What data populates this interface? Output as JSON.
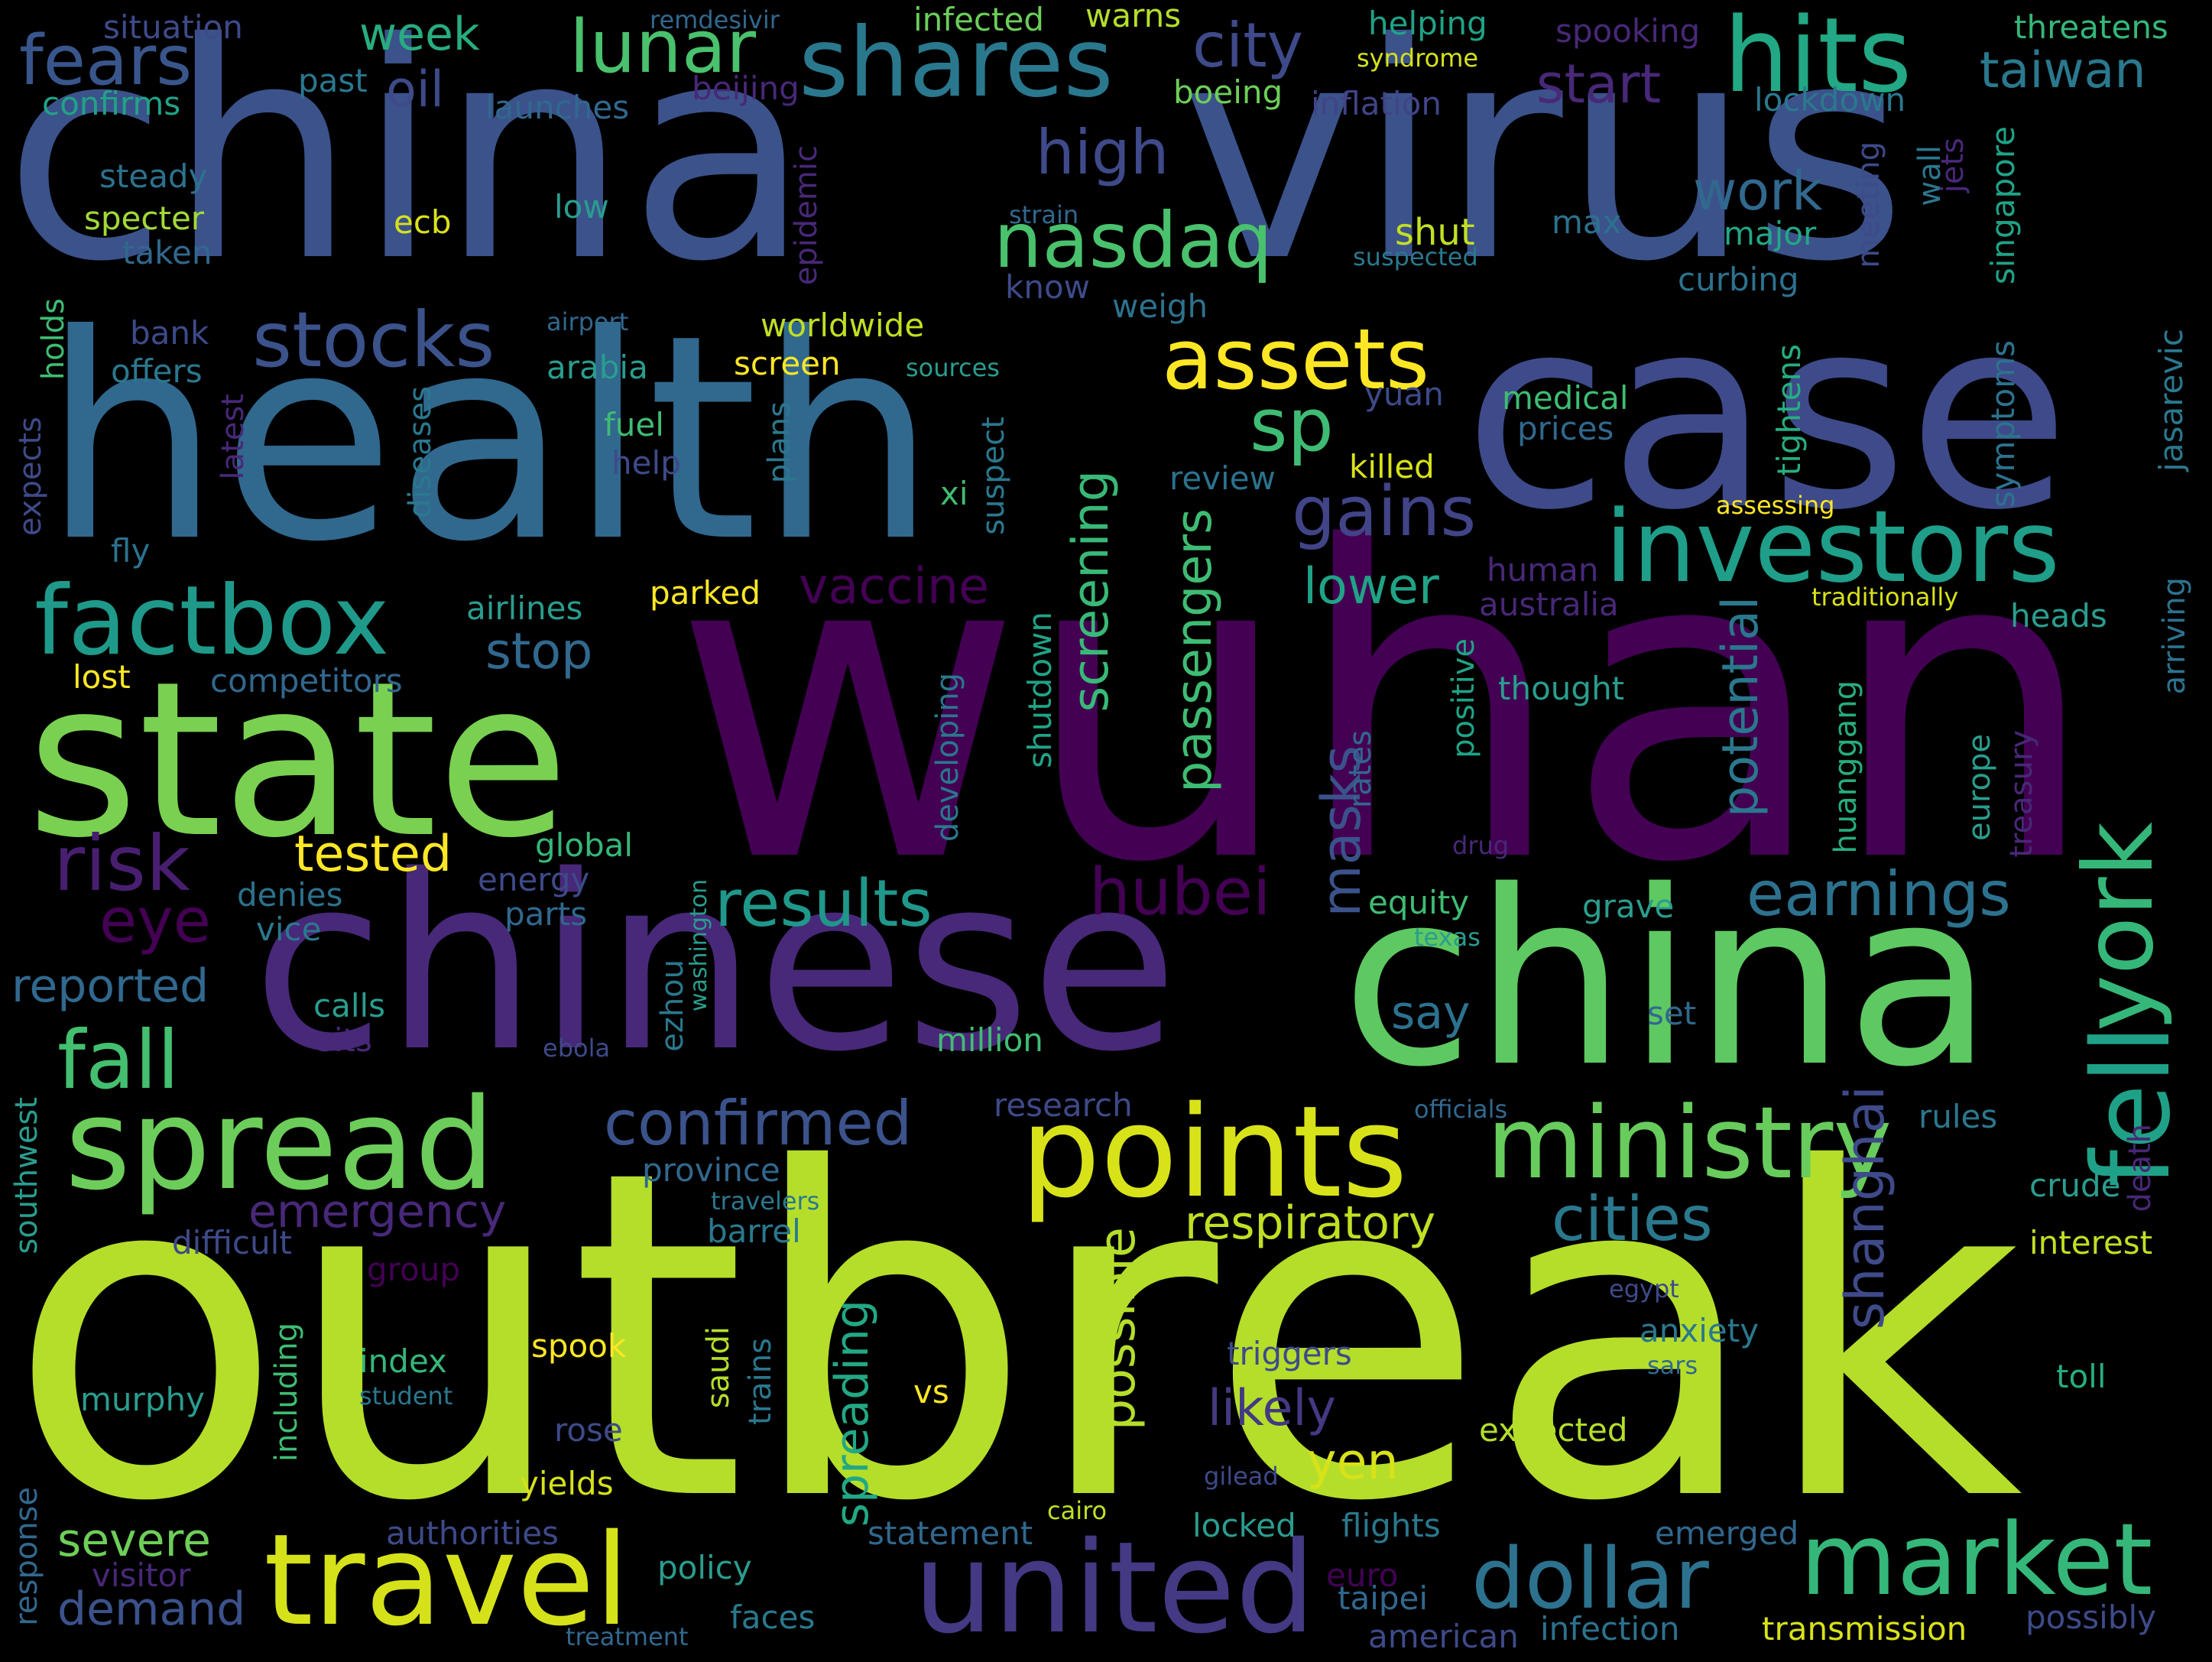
{
  "words": [
    {
      "text": "outbreak",
      "color": "#b5de2b"
    },
    {
      "text": "wuhan",
      "color": "#440154"
    },
    {
      "text": "china",
      "color": "#3b528b"
    },
    {
      "text": "virus",
      "color": "#3b528b"
    },
    {
      "text": "health",
      "color": "#31688e"
    },
    {
      "text": "case",
      "color": "#3e4a89"
    },
    {
      "text": "chinese",
      "color": "#482878"
    },
    {
      "text": "china",
      "color": "#5ec962"
    },
    {
      "text": "state",
      "color": "#7ad151"
    },
    {
      "text": "points",
      "color": "#d8e219"
    },
    {
      "text": "spread",
      "color": "#6ccd5a"
    },
    {
      "text": "travel",
      "color": "#d5e21a"
    },
    {
      "text": "united",
      "color": "#443983"
    },
    {
      "text": "shares",
      "color": "#2a788e"
    },
    {
      "text": "hits",
      "color": "#22a884"
    },
    {
      "text": "investors",
      "color": "#1f9e89"
    },
    {
      "text": "ministry",
      "color": "#67cc5c"
    },
    {
      "text": "market",
      "color": "#35b779"
    },
    {
      "text": "factbox",
      "color": "#1f9a8a"
    },
    {
      "text": "assets",
      "color": "#fde725"
    },
    {
      "text": "stocks",
      "color": "#3b528b"
    },
    {
      "text": "fell",
      "color": "#1fa187"
    },
    {
      "text": "york",
      "color": "#35b779"
    },
    {
      "text": "dollar",
      "color": "#2c728e"
    },
    {
      "text": "nasdaq",
      "color": "#4ac16d"
    },
    {
      "text": "fall",
      "color": "#44bf70"
    },
    {
      "text": "lunar",
      "color": "#4ac16d"
    },
    {
      "text": "fears",
      "color": "#39568c"
    },
    {
      "text": "sp",
      "color": "#3fbc73"
    },
    {
      "text": "gains",
      "color": "#414487"
    },
    {
      "text": "risk",
      "color": "#481f70"
    },
    {
      "text": "results",
      "color": "#1f988b"
    },
    {
      "text": "hubei",
      "color": "#440154"
    },
    {
      "text": "earnings",
      "color": "#2c728e"
    },
    {
      "text": "confirmed",
      "color": "#3b528b"
    },
    {
      "text": "cities",
      "color": "#2a788e"
    },
    {
      "text": "high",
      "color": "#3e4a89"
    },
    {
      "text": "city",
      "color": "#3e4a89"
    },
    {
      "text": "start",
      "color": "#482878"
    },
    {
      "text": "taiwan",
      "color": "#2a788e"
    },
    {
      "text": "work",
      "color": "#31688e"
    },
    {
      "text": "week",
      "color": "#27ad81"
    },
    {
      "text": "oil",
      "color": "#3e4a89"
    },
    {
      "text": "eye",
      "color": "#440154"
    },
    {
      "text": "tested",
      "color": "#fde725"
    },
    {
      "text": "stop",
      "color": "#31688e"
    },
    {
      "text": "lower",
      "color": "#20a386"
    },
    {
      "text": "vaccine",
      "color": "#440154"
    },
    {
      "text": "emergency",
      "color": "#482878"
    },
    {
      "text": "respiratory",
      "color": "#c2df23"
    },
    {
      "text": "reported",
      "color": "#31688e"
    },
    {
      "text": "severe",
      "color": "#6ece58"
    },
    {
      "text": "demand",
      "color": "#3b528b"
    },
    {
      "text": "likely",
      "color": "#443983"
    },
    {
      "text": "yen",
      "color": "#d8e219"
    },
    {
      "text": "say",
      "color": "#2c728e"
    },
    {
      "text": "passengers",
      "color": "#3fbc73"
    },
    {
      "text": "screening",
      "color": "#38b977"
    },
    {
      "text": "masks",
      "color": "#3b528b"
    },
    {
      "text": "potential",
      "color": "#2a788e"
    },
    {
      "text": "shanghai",
      "color": "#3e4a89"
    },
    {
      "text": "possible",
      "color": "#b5de2b"
    },
    {
      "text": "spreading",
      "color": "#22a884"
    },
    {
      "text": "situation",
      "color": "#3e4a89"
    },
    {
      "text": "confirms",
      "color": "#20a386"
    },
    {
      "text": "past",
      "color": "#2a788e"
    },
    {
      "text": "launches",
      "color": "#31688e"
    },
    {
      "text": "remdesivir",
      "color": "#31688e"
    },
    {
      "text": "infected",
      "color": "#6ccd5a"
    },
    {
      "text": "warns",
      "color": "#b5de2b"
    },
    {
      "text": "helping",
      "color": "#20a386"
    },
    {
      "text": "spooking",
      "color": "#482878"
    },
    {
      "text": "syndrome",
      "color": "#d5e21a"
    },
    {
      "text": "threatens",
      "color": "#35b779"
    },
    {
      "text": "beijing",
      "color": "#482878"
    },
    {
      "text": "boeing",
      "color": "#6ece58"
    },
    {
      "text": "inflation",
      "color": "#414487"
    },
    {
      "text": "lockdown",
      "color": "#2a788e"
    },
    {
      "text": "steady",
      "color": "#2c728e"
    },
    {
      "text": "specter",
      "color": "#a2da37"
    },
    {
      "text": "taken",
      "color": "#31688e"
    },
    {
      "text": "ecb",
      "color": "#d8e219"
    },
    {
      "text": "low",
      "color": "#2a9d8e"
    },
    {
      "text": "strain",
      "color": "#31688e"
    },
    {
      "text": "shut",
      "color": "#c2df23"
    },
    {
      "text": "max",
      "color": "#2c728e"
    },
    {
      "text": "major",
      "color": "#22a884"
    },
    {
      "text": "suspected",
      "color": "#2a788e"
    },
    {
      "text": "know",
      "color": "#3e4a89"
    },
    {
      "text": "weigh",
      "color": "#2c728e"
    },
    {
      "text": "curbing",
      "color": "#2c728e"
    },
    {
      "text": "epidemic",
      "color": "#482878"
    },
    {
      "text": "meeting",
      "color": "#3e4a89"
    },
    {
      "text": "wall",
      "color": "#2a788e"
    },
    {
      "text": "jets",
      "color": "#482878"
    },
    {
      "text": "singapore",
      "color": "#20a386"
    },
    {
      "text": "airport",
      "color": "#31688e"
    },
    {
      "text": "holds",
      "color": "#3fbc73"
    },
    {
      "text": "bank",
      "color": "#3e4a89"
    },
    {
      "text": "offers",
      "color": "#2a788e"
    },
    {
      "text": "worldwide",
      "color": "#c2df23"
    },
    {
      "text": "arabia",
      "color": "#2a9d8e"
    },
    {
      "text": "screen",
      "color": "#fde725"
    },
    {
      "text": "sources",
      "color": "#2a9d8e"
    },
    {
      "text": "yuan",
      "color": "#3e4a89"
    },
    {
      "text": "medical",
      "color": "#3fbc73"
    },
    {
      "text": "prices",
      "color": "#31688e"
    },
    {
      "text": "tightens",
      "color": "#27ad81"
    },
    {
      "text": "symptoms",
      "color": "#2c728e"
    },
    {
      "text": "jasarevic",
      "color": "#2a788e"
    },
    {
      "text": "expects",
      "color": "#3e4a89"
    },
    {
      "text": "latest",
      "color": "#482878"
    },
    {
      "text": "diseases",
      "color": "#2a788e"
    },
    {
      "text": "fuel",
      "color": "#3fbc73"
    },
    {
      "text": "help",
      "color": "#3e4a89"
    },
    {
      "text": "plans",
      "color": "#2a788e"
    },
    {
      "text": "suspect",
      "color": "#2a788e"
    },
    {
      "text": "xi",
      "color": "#3fbc73"
    },
    {
      "text": "killed",
      "color": "#d8e219"
    },
    {
      "text": "review",
      "color": "#2c728e"
    },
    {
      "text": "assessing",
      "color": "#fde725"
    },
    {
      "text": "fly",
      "color": "#2c728e"
    },
    {
      "text": "airlines",
      "color": "#2a9d8e"
    },
    {
      "text": "parked",
      "color": "#fde725"
    },
    {
      "text": "human",
      "color": "#482878"
    },
    {
      "text": "australia",
      "color": "#482878"
    },
    {
      "text": "traditionally",
      "color": "#d8e219"
    },
    {
      "text": "heads",
      "color": "#2a9d8e"
    },
    {
      "text": "arriving",
      "color": "#2c728e"
    },
    {
      "text": "lost",
      "color": "#fde725"
    },
    {
      "text": "competitors",
      "color": "#31688e"
    },
    {
      "text": "shutdown",
      "color": "#20a386"
    },
    {
      "text": "developing",
      "color": "#2a788e"
    },
    {
      "text": "positive",
      "color": "#20a386"
    },
    {
      "text": "rates",
      "color": "#31688e"
    },
    {
      "text": "thought",
      "color": "#2a9d8e"
    },
    {
      "text": "huanggang",
      "color": "#27ad81"
    },
    {
      "text": "europe",
      "color": "#2a9d8e"
    },
    {
      "text": "treasury",
      "color": "#482878"
    },
    {
      "text": "global",
      "color": "#35b779"
    },
    {
      "text": "energy",
      "color": "#3e4a89"
    },
    {
      "text": "parts",
      "color": "#31688e"
    },
    {
      "text": "denies",
      "color": "#2c728e"
    },
    {
      "text": "vice",
      "color": "#2a788e"
    },
    {
      "text": "washington",
      "color": "#2a9d8e"
    },
    {
      "text": "ezhou",
      "color": "#2a788e"
    },
    {
      "text": "equity",
      "color": "#3fbc73"
    },
    {
      "text": "drug",
      "color": "#482878"
    },
    {
      "text": "grave",
      "color": "#2a9d8e"
    },
    {
      "text": "texas",
      "color": "#2a9d8e"
    },
    {
      "text": "calls",
      "color": "#2a9d8e"
    },
    {
      "text": "sits",
      "color": "#482878"
    },
    {
      "text": "ebola",
      "color": "#3e4a89"
    },
    {
      "text": "million",
      "color": "#3fbc73"
    },
    {
      "text": "set",
      "color": "#31688e"
    },
    {
      "text": "southwest",
      "color": "#2a9d8e"
    },
    {
      "text": "research",
      "color": "#3e4a89"
    },
    {
      "text": "officials",
      "color": "#31688e"
    },
    {
      "text": "rules",
      "color": "#2a788e"
    },
    {
      "text": "death",
      "color": "#482878"
    },
    {
      "text": "province",
      "color": "#31688e"
    },
    {
      "text": "travelers",
      "color": "#2a788e"
    },
    {
      "text": "crude",
      "color": "#2a9d8e"
    },
    {
      "text": "difficult",
      "color": "#3e4a89"
    },
    {
      "text": "group",
      "color": "#440154"
    },
    {
      "text": "barrel",
      "color": "#2a788e"
    },
    {
      "text": "interest",
      "color": "#c2df23"
    },
    {
      "text": "egypt",
      "color": "#3e4a89"
    },
    {
      "text": "anxiety",
      "color": "#2a788e"
    },
    {
      "text": "sars",
      "color": "#31688e"
    },
    {
      "text": "including",
      "color": "#3fbc73"
    },
    {
      "text": "index",
      "color": "#35b779"
    },
    {
      "text": "spook",
      "color": "#fde725"
    },
    {
      "text": "saudi",
      "color": "#b5de2b"
    },
    {
      "text": "trains",
      "color": "#2a788e"
    },
    {
      "text": "triggers",
      "color": "#3e4a89"
    },
    {
      "text": "toll",
      "color": "#27ad81"
    },
    {
      "text": "murphy",
      "color": "#2a9d8e"
    },
    {
      "text": "student",
      "color": "#2a788e"
    },
    {
      "text": "vs",
      "color": "#fde725"
    },
    {
      "text": "expected",
      "color": "#b5de2b"
    },
    {
      "text": "rose",
      "color": "#3e4a89"
    },
    {
      "text": "yields",
      "color": "#d5e21a"
    },
    {
      "text": "gilead",
      "color": "#3e4a89"
    },
    {
      "text": "cairo",
      "color": "#c2df23"
    },
    {
      "text": "response",
      "color": "#31688e"
    },
    {
      "text": "authorities",
      "color": "#3e4a89"
    },
    {
      "text": "statement",
      "color": "#31688e"
    },
    {
      "text": "locked",
      "color": "#2a9d8e"
    },
    {
      "text": "flights",
      "color": "#2a788e"
    },
    {
      "text": "emerged",
      "color": "#31688e"
    },
    {
      "text": "visitor",
      "color": "#482878"
    },
    {
      "text": "policy",
      "color": "#2a9d8e"
    },
    {
      "text": "faces",
      "color": "#2a788e"
    },
    {
      "text": "euro",
      "color": "#440154"
    },
    {
      "text": "taipei",
      "color": "#31688e"
    },
    {
      "text": "american",
      "color": "#3e4a89"
    },
    {
      "text": "infection",
      "color": "#2c728e"
    },
    {
      "text": "transmission",
      "color": "#d8e219"
    },
    {
      "text": "possibly",
      "color": "#3e4a89"
    },
    {
      "text": "treatment",
      "color": "#31688e"
    }
  ]
}
